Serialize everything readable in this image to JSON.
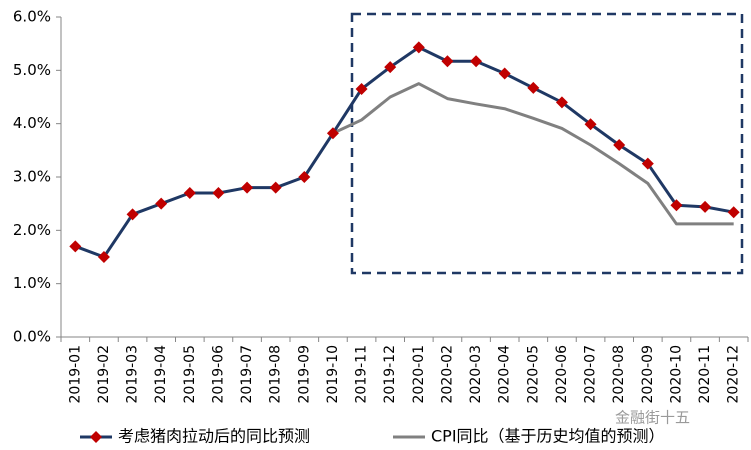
{
  "chart_data": {
    "type": "line",
    "categories": [
      "2019-01",
      "2019-02",
      "2019-03",
      "2019-04",
      "2019-05",
      "2019-06",
      "2019-07",
      "2019-08",
      "2019-09",
      "2019-10",
      "2019-11",
      "2019-12",
      "2020-01",
      "2020-02",
      "2020-03",
      "2020-04",
      "2020-05",
      "2020-06",
      "2020-07",
      "2020-08",
      "2020-09",
      "2020-10",
      "2020-11",
      "2020-12"
    ],
    "series": [
      {
        "name": "考虑猪肉拉动后的同比预测",
        "color": "#1f3864",
        "marker_color": "#c00000",
        "values": [
          1.7,
          1.5,
          2.3,
          2.5,
          2.7,
          2.7,
          2.8,
          2.8,
          3.0,
          3.82,
          4.65,
          5.06,
          5.43,
          5.17,
          5.17,
          4.94,
          4.67,
          4.4,
          3.99,
          3.6,
          3.25,
          2.47,
          2.44,
          2.34
        ]
      },
      {
        "name": "CPI同比（基于历史均值的预测）",
        "color": "#808080",
        "values": [
          null,
          null,
          null,
          null,
          null,
          null,
          null,
          null,
          null,
          3.82,
          4.07,
          4.5,
          4.75,
          4.47,
          4.37,
          4.28,
          4.1,
          3.91,
          3.6,
          3.25,
          2.88,
          2.12,
          2.12,
          2.12
        ]
      }
    ],
    "ylim": [
      0,
      6
    ],
    "yticks": [
      {
        "value": 0,
        "label": "0.0%"
      },
      {
        "value": 1,
        "label": "1.0%"
      },
      {
        "value": 2,
        "label": "2.0%"
      },
      {
        "value": 3,
        "label": "3.0%"
      },
      {
        "value": 4,
        "label": "4.0%"
      },
      {
        "value": 5,
        "label": "5.0%"
      },
      {
        "value": 6,
        "label": "6.0%"
      }
    ],
    "grid": false,
    "legend": "bottom",
    "watermark": "金融街十五"
  }
}
